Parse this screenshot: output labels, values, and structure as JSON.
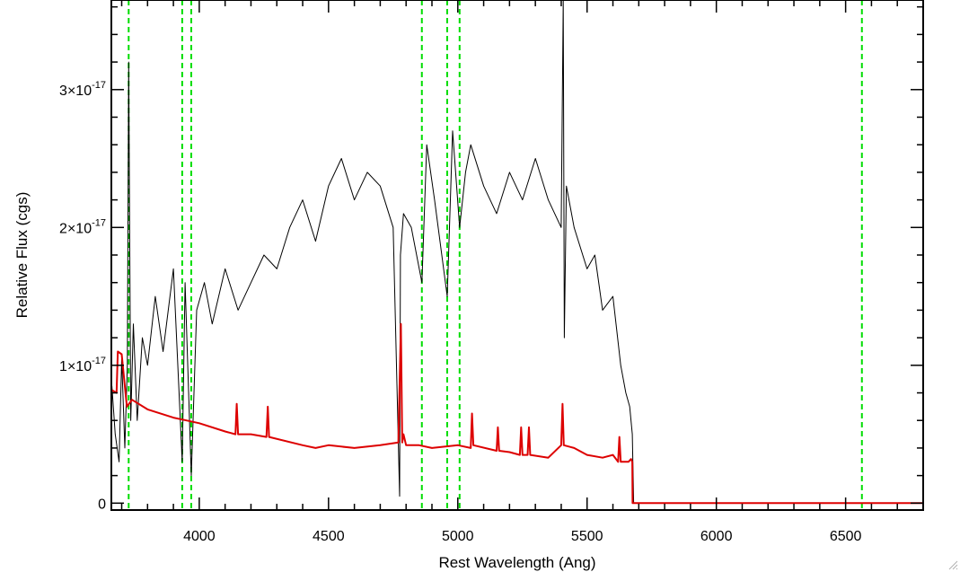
{
  "chart_data": {
    "type": "line",
    "title": "",
    "xlabel": "Rest Wavelength (Ang)",
    "ylabel": "Relative Flux (cgs)",
    "xlim": [
      3660,
      6800
    ],
    "ylim": [
      -5e-19,
      3.65e-17
    ],
    "x_ticks": [
      {
        "value": 4000,
        "label": "4000"
      },
      {
        "value": 4500,
        "label": "4500"
      },
      {
        "value": 5000,
        "label": "5000"
      },
      {
        "value": 5500,
        "label": "5500"
      },
      {
        "value": 6000,
        "label": "6000"
      },
      {
        "value": 6500,
        "label": "6500"
      }
    ],
    "y_ticks": [
      {
        "value": 0,
        "mantissa": "0",
        "exponent": ""
      },
      {
        "value": 1e-17,
        "mantissa": "1×10",
        "exponent": "-17"
      },
      {
        "value": 2e-17,
        "mantissa": "2×10",
        "exponent": "-17"
      },
      {
        "value": 3e-17,
        "mantissa": "3×10",
        "exponent": "-17"
      }
    ],
    "grid": false,
    "line_markers": {
      "color": "#00dd00",
      "style": "dashed",
      "x": [
        3727,
        3934,
        3969,
        4861,
        4959,
        5007,
        6563
      ]
    },
    "series": [
      {
        "color": "#000000",
        "x": [
          3662,
          3675,
          3690,
          3700,
          3712,
          3722,
          3727,
          3735,
          3745,
          3760,
          3780,
          3800,
          3830,
          3860,
          3900,
          3934,
          3945,
          3969,
          3990,
          4020,
          4050,
          4100,
          4150,
          4200,
          4250,
          4300,
          4350,
          4400,
          4450,
          4500,
          4550,
          4600,
          4650,
          4700,
          4750,
          4775,
          4778,
          4790,
          4820,
          4861,
          4880,
          4910,
          4959,
          4980,
          5007,
          5030,
          5050,
          5100,
          5150,
          5200,
          5250,
          5300,
          5350,
          5400,
          5408,
          5412,
          5420,
          5450,
          5500,
          5530,
          5560,
          5600,
          5630,
          5650,
          5665,
          5675,
          5680,
          5690,
          6000,
          6500,
          6800
        ],
        "values": [
          8.5e-18,
          5e-18,
          3e-18,
          1.05e-17,
          4e-18,
          1e-17,
          3.2e-17,
          6e-18,
          1.3e-17,
          6e-18,
          1.2e-17,
          1e-17,
          1.5e-17,
          1.1e-17,
          1.7e-17,
          3e-18,
          1.6e-17,
          2e-18,
          1.4e-17,
          1.6e-17,
          1.3e-17,
          1.7e-17,
          1.4e-17,
          1.6e-17,
          1.8e-17,
          1.7e-17,
          2e-17,
          2.2e-17,
          1.9e-17,
          2.3e-17,
          2.5e-17,
          2.2e-17,
          2.4e-17,
          2.3e-17,
          2e-17,
          5e-19,
          1.8e-17,
          2.1e-17,
          2e-17,
          1.6e-17,
          2.6e-17,
          2.2e-17,
          1.5e-17,
          2.7e-17,
          2e-17,
          2.4e-17,
          2.6e-17,
          2.3e-17,
          2.1e-17,
          2.4e-17,
          2.2e-17,
          2.5e-17,
          2.2e-17,
          2e-17,
          3.65e-17,
          1.2e-17,
          2.3e-17,
          2e-17,
          1.7e-17,
          1.8e-17,
          1.4e-17,
          1.5e-17,
          1e-17,
          8e-18,
          7e-18,
          5e-18,
          0,
          0,
          0,
          0,
          0
        ]
      },
      {
        "color": "#dd0000",
        "x": [
          3662,
          3680,
          3685,
          3700,
          3720,
          3740,
          3800,
          3900,
          3950,
          4000,
          4100,
          4140,
          4145,
          4150,
          4200,
          4260,
          4265,
          4270,
          4400,
          4450,
          4500,
          4600,
          4700,
          4770,
          4780,
          4785,
          4790,
          4800,
          4850,
          4900,
          5000,
          5050,
          5055,
          5060,
          5150,
          5155,
          5160,
          5200,
          5240,
          5245,
          5250,
          5270,
          5275,
          5280,
          5350,
          5400,
          5405,
          5410,
          5450,
          5500,
          5560,
          5600,
          5620,
          5625,
          5630,
          5660,
          5670,
          5675,
          5676,
          6000,
          6500,
          6800
        ],
        "values": [
          8.2e-18,
          8e-18,
          1.1e-17,
          1.08e-17,
          7e-18,
          7.5e-18,
          6.8e-18,
          6.2e-18,
          6e-18,
          5.8e-18,
          5.2e-18,
          5e-18,
          7.2e-18,
          5e-18,
          5e-18,
          4.8e-18,
          7e-18,
          4.8e-18,
          4.2e-18,
          4e-18,
          4.2e-18,
          4e-18,
          4.2e-18,
          4.4e-18,
          1.3e-17,
          4.4e-18,
          5e-18,
          4.2e-18,
          4.2e-18,
          4e-18,
          4.2e-18,
          4e-18,
          6.5e-18,
          4.2e-18,
          3.8e-18,
          5.5e-18,
          3.8e-18,
          3.7e-18,
          3.5e-18,
          5.5e-18,
          3.5e-18,
          3.5e-18,
          5.5e-18,
          3.5e-18,
          3.3e-18,
          4.2e-18,
          7.2e-18,
          4.2e-18,
          4e-18,
          3.5e-18,
          3.3e-18,
          3.5e-18,
          3e-18,
          4.8e-18,
          3e-18,
          3e-18,
          3.2e-18,
          3e-18,
          0,
          0,
          0,
          0
        ]
      }
    ]
  }
}
